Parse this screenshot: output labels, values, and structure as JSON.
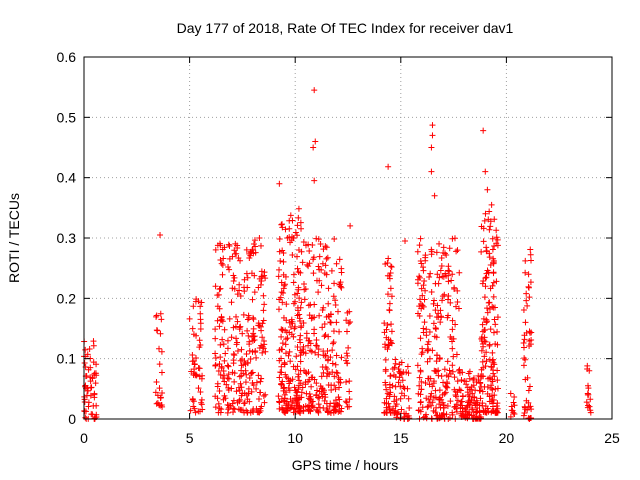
{
  "chart_data": {
    "type": "scatter",
    "title": "Day 177 of 2018, Rate Of TEC Index for receiver dav1",
    "xlabel": "GPS time / hours",
    "ylabel": "ROTI / TECUs",
    "xlim": [
      0,
      25
    ],
    "ylim": [
      0,
      0.6
    ],
    "xticks": [
      0,
      5,
      10,
      15,
      20,
      25
    ],
    "xtick_labels": [
      "0",
      "5",
      "10",
      "15",
      "20",
      "25"
    ],
    "yticks": [
      0,
      0.1,
      0.2,
      0.3,
      0.4,
      0.5,
      0.6
    ],
    "ytick_labels": [
      "0",
      "0.1",
      "0.2",
      "0.3",
      "0.4",
      "0.5",
      "0.6"
    ],
    "grid": true,
    "legend": "none",
    "marker": "plus",
    "color": "#ff0000",
    "clusters": [
      {
        "x": [
          0.0,
          0.6
        ],
        "ymin": 0.0,
        "ymax": 0.13,
        "count": 60
      },
      {
        "x": [
          3.4,
          3.7
        ],
        "ymin": 0.02,
        "ymax": 0.18,
        "count": 25
      },
      {
        "x": [
          5.0,
          5.6
        ],
        "ymin": 0.01,
        "ymax": 0.2,
        "count": 50
      },
      {
        "x": [
          6.2,
          8.6
        ],
        "ymin": 0.01,
        "ymax": 0.3,
        "count": 280
      },
      {
        "x": [
          9.2,
          10.3
        ],
        "ymin": 0.01,
        "ymax": 0.35,
        "count": 200
      },
      {
        "x": [
          10.3,
          12.2
        ],
        "ymin": 0.01,
        "ymax": 0.3,
        "count": 230
      },
      {
        "x": [
          12.4,
          12.6
        ],
        "ymin": 0.02,
        "ymax": 0.18,
        "count": 20
      },
      {
        "x": [
          14.2,
          14.6
        ],
        "ymin": 0.01,
        "ymax": 0.27,
        "count": 60
      },
      {
        "x": [
          14.6,
          15.4
        ],
        "ymin": 0.0,
        "ymax": 0.1,
        "count": 60
      },
      {
        "x": [
          15.8,
          17.8
        ],
        "ymin": 0.0,
        "ymax": 0.3,
        "count": 250
      },
      {
        "x": [
          17.8,
          18.8
        ],
        "ymin": 0.0,
        "ymax": 0.08,
        "count": 100
      },
      {
        "x": [
          18.8,
          19.6
        ],
        "ymin": 0.01,
        "ymax": 0.35,
        "count": 160
      },
      {
        "x": [
          20.2,
          20.4
        ],
        "ymin": 0.0,
        "ymax": 0.05,
        "count": 10
      },
      {
        "x": [
          20.8,
          21.2
        ],
        "ymin": 0.0,
        "ymax": 0.29,
        "count": 50
      },
      {
        "x": [
          23.8,
          24.0
        ],
        "ymin": 0.01,
        "ymax": 0.09,
        "count": 15
      }
    ],
    "outliers": [
      {
        "x": 3.6,
        "y": 0.305
      },
      {
        "x": 9.25,
        "y": 0.39
      },
      {
        "x": 10.9,
        "y": 0.545
      },
      {
        "x": 10.95,
        "y": 0.46
      },
      {
        "x": 10.85,
        "y": 0.45
      },
      {
        "x": 10.9,
        "y": 0.395
      },
      {
        "x": 12.6,
        "y": 0.32
      },
      {
        "x": 14.4,
        "y": 0.418
      },
      {
        "x": 15.2,
        "y": 0.295
      },
      {
        "x": 16.5,
        "y": 0.487
      },
      {
        "x": 16.5,
        "y": 0.47
      },
      {
        "x": 16.45,
        "y": 0.45
      },
      {
        "x": 16.45,
        "y": 0.41
      },
      {
        "x": 16.6,
        "y": 0.37
      },
      {
        "x": 18.9,
        "y": 0.478
      },
      {
        "x": 19.0,
        "y": 0.41
      },
      {
        "x": 19.1,
        "y": 0.38
      },
      {
        "x": 19.3,
        "y": 0.355
      }
    ]
  }
}
